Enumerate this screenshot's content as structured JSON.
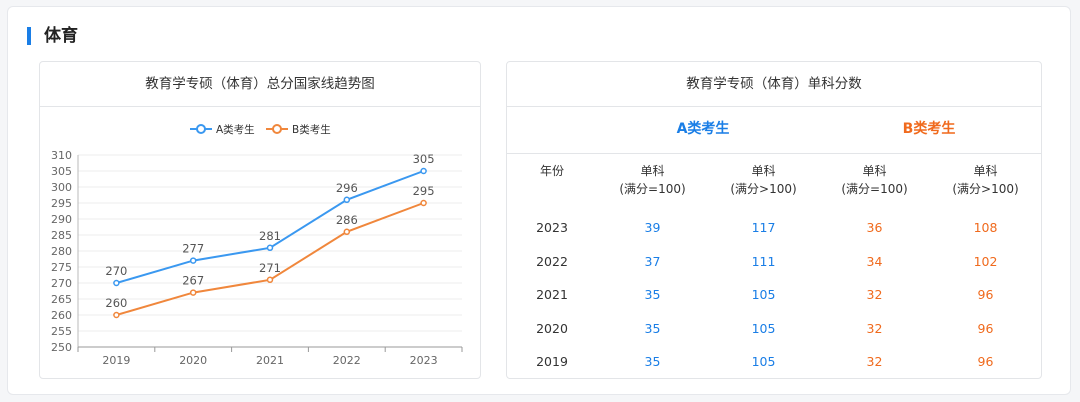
{
  "section": {
    "title": "体育"
  },
  "chart_card": {
    "title": "教育学专硕（体育）总分国家线趋势图"
  },
  "chart_data": {
    "type": "line",
    "title": "教育学专硕（体育）总分国家线趋势图",
    "categories": [
      "2019",
      "2020",
      "2021",
      "2022",
      "2023"
    ],
    "series": [
      {
        "name": "A类考生",
        "values": [
          270,
          277,
          281,
          296,
          305
        ],
        "color": "#3a98f0"
      },
      {
        "name": "B类考生",
        "values": [
          260,
          267,
          271,
          286,
          295
        ],
        "color": "#f0873c"
      }
    ],
    "ylim": [
      250,
      310
    ],
    "yticks": [
      250,
      255,
      260,
      265,
      270,
      275,
      280,
      285,
      290,
      295,
      300,
      305,
      310
    ],
    "legend": "top-center",
    "grid": true
  },
  "table_card": {
    "title": "教育学专硕（体育）单科分数",
    "class_a": "A类考生",
    "class_b": "B类考生",
    "headers": {
      "year": "年份",
      "cols": [
        {
          "l1": "单科",
          "l2": "(满分=100)"
        },
        {
          "l1": "单科",
          "l2": "(满分>100)"
        },
        {
          "l1": "单科",
          "l2": "(满分=100)"
        },
        {
          "l1": "单科",
          "l2": "(满分>100)"
        }
      ]
    },
    "rows": [
      {
        "year": "2023",
        "a1": "39",
        "a2": "117",
        "b1": "36",
        "b2": "108"
      },
      {
        "year": "2022",
        "a1": "37",
        "a2": "111",
        "b1": "34",
        "b2": "102"
      },
      {
        "year": "2021",
        "a1": "35",
        "a2": "105",
        "b1": "32",
        "b2": "96"
      },
      {
        "year": "2020",
        "a1": "35",
        "a2": "105",
        "b1": "32",
        "b2": "96"
      },
      {
        "year": "2019",
        "a1": "35",
        "a2": "105",
        "b1": "32",
        "b2": "96"
      }
    ]
  }
}
